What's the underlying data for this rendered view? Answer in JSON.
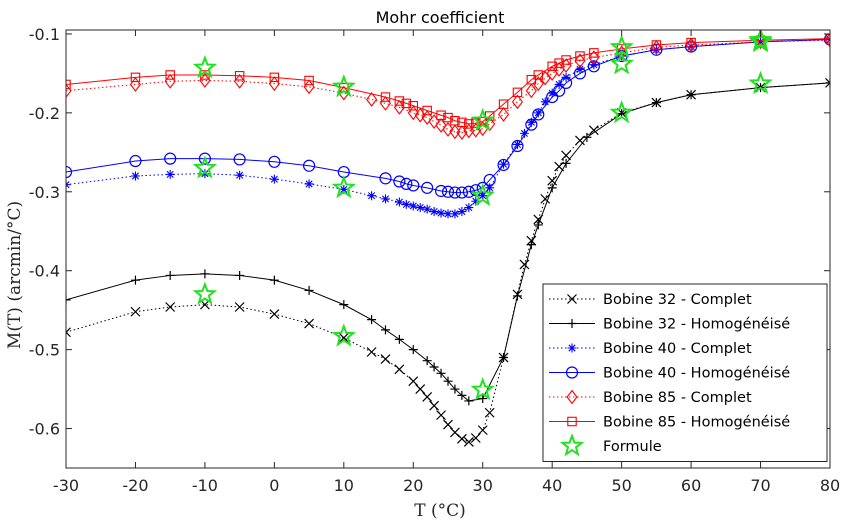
{
  "chart_data": {
    "type": "line",
    "title": "Mohr coefficient",
    "xlabel": "T (°C)",
    "ylabel": "M(T) (arcmin/°C)",
    "xlim": [
      -30,
      80
    ],
    "ylim": [
      -0.65,
      -0.095
    ],
    "xticks": [
      -30,
      -20,
      -10,
      0,
      10,
      20,
      30,
      40,
      50,
      60,
      70,
      80
    ],
    "yticks": [
      -0.6,
      -0.5,
      -0.4,
      -0.3,
      -0.2,
      -0.1
    ],
    "ytick_labels": [
      "-0.6",
      "-0.5",
      "-0.4",
      "-0.3",
      "-0.2",
      "-0.1"
    ],
    "grid": false,
    "legend_position": "bottom-right",
    "series": [
      {
        "name": "Bobine 32 - Complet",
        "color": "#000000",
        "line": "dotted",
        "marker": "x",
        "x": [
          -30,
          -20,
          -15,
          -10,
          -5,
          0,
          5,
          10,
          14,
          16,
          18,
          20,
          21,
          22,
          23,
          24,
          25,
          26,
          27,
          28,
          29,
          30,
          31,
          33,
          35,
          36,
          37,
          38,
          39,
          40,
          41,
          42,
          44,
          46,
          50,
          55,
          60,
          70,
          80
        ],
        "y": [
          -0.478,
          -0.452,
          -0.446,
          -0.443,
          -0.446,
          -0.455,
          -0.467,
          -0.485,
          -0.503,
          -0.512,
          -0.525,
          -0.54,
          -0.55,
          -0.56,
          -0.571,
          -0.583,
          -0.595,
          -0.605,
          -0.613,
          -0.617,
          -0.612,
          -0.602,
          -0.58,
          -0.51,
          -0.43,
          -0.392,
          -0.362,
          -0.335,
          -0.309,
          -0.286,
          -0.268,
          -0.254,
          -0.235,
          -0.222,
          -0.2,
          -0.187,
          -0.177,
          -0.168,
          -0.162
        ]
      },
      {
        "name": "Bobine 32 - Homogénéisé",
        "color": "#000000",
        "line": "solid",
        "marker": "+",
        "x": [
          -30,
          -20,
          -15,
          -10,
          -5,
          0,
          5,
          10,
          14,
          16,
          18,
          20,
          22,
          23,
          24,
          25,
          26,
          27,
          28,
          30,
          33,
          35,
          37,
          38,
          40,
          42,
          45,
          50,
          55,
          60,
          70,
          80
        ],
        "y": [
          -0.437,
          -0.412,
          -0.406,
          -0.404,
          -0.406,
          -0.412,
          -0.425,
          -0.443,
          -0.462,
          -0.475,
          -0.487,
          -0.5,
          -0.514,
          -0.522,
          -0.53,
          -0.54,
          -0.55,
          -0.558,
          -0.565,
          -0.562,
          -0.51,
          -0.432,
          -0.367,
          -0.342,
          -0.295,
          -0.264,
          -0.231,
          -0.201,
          -0.187,
          -0.177,
          -0.168,
          -0.162
        ]
      },
      {
        "name": "Bobine 40 - Complet",
        "color": "#0000ff",
        "line": "dotted",
        "marker": "*",
        "x": [
          -30,
          -20,
          -15,
          -10,
          -5,
          0,
          5,
          10,
          14,
          16,
          18,
          19,
          20,
          21,
          22,
          23,
          24,
          25,
          26,
          27,
          28,
          29,
          30,
          31,
          33,
          35,
          36,
          37,
          38,
          39,
          40,
          41,
          42,
          44,
          46,
          50,
          55,
          60,
          70,
          80
        ],
        "y": [
          -0.291,
          -0.28,
          -0.278,
          -0.277,
          -0.279,
          -0.284,
          -0.29,
          -0.297,
          -0.305,
          -0.309,
          -0.313,
          -0.316,
          -0.318,
          -0.32,
          -0.322,
          -0.325,
          -0.327,
          -0.328,
          -0.328,
          -0.325,
          -0.32,
          -0.312,
          -0.305,
          -0.295,
          -0.265,
          -0.24,
          -0.226,
          -0.212,
          -0.2,
          -0.186,
          -0.175,
          -0.164,
          -0.155,
          -0.145,
          -0.139,
          -0.128,
          -0.12,
          -0.116,
          -0.11,
          -0.107
        ]
      },
      {
        "name": "Bobine 40 - Homogénéisé",
        "color": "#0000ff",
        "line": "solid",
        "marker": "o",
        "x": [
          -30,
          -20,
          -15,
          -10,
          -5,
          0,
          5,
          10,
          16,
          18,
          19,
          20,
          22,
          24,
          25,
          26,
          27,
          28,
          29,
          30,
          31,
          33,
          35,
          37,
          38,
          40,
          41,
          42,
          44,
          46,
          50,
          55,
          60,
          70,
          80
        ],
        "y": [
          -0.275,
          -0.261,
          -0.258,
          -0.258,
          -0.259,
          -0.262,
          -0.267,
          -0.275,
          -0.283,
          -0.287,
          -0.29,
          -0.292,
          -0.295,
          -0.299,
          -0.3,
          -0.301,
          -0.301,
          -0.3,
          -0.298,
          -0.295,
          -0.285,
          -0.266,
          -0.242,
          -0.215,
          -0.202,
          -0.18,
          -0.172,
          -0.162,
          -0.15,
          -0.141,
          -0.128,
          -0.12,
          -0.116,
          -0.11,
          -0.107
        ]
      },
      {
        "name": "Bobine 85 - Complet",
        "color": "#ff0000",
        "line": "dotted",
        "marker": "diamond",
        "x": [
          -30,
          -20,
          -15,
          -10,
          -5,
          0,
          5,
          10,
          14,
          16,
          18,
          20,
          21,
          22,
          23,
          24,
          25,
          26,
          27,
          28,
          29,
          30,
          31,
          33,
          35,
          37,
          38,
          39,
          40,
          41,
          42,
          44,
          46,
          50,
          55,
          60,
          70,
          80
        ],
        "y": [
          -0.172,
          -0.164,
          -0.16,
          -0.159,
          -0.16,
          -0.163,
          -0.167,
          -0.175,
          -0.183,
          -0.188,
          -0.193,
          -0.2,
          -0.203,
          -0.206,
          -0.211,
          -0.216,
          -0.221,
          -0.224,
          -0.225,
          -0.223,
          -0.222,
          -0.22,
          -0.214,
          -0.202,
          -0.186,
          -0.172,
          -0.163,
          -0.156,
          -0.15,
          -0.145,
          -0.14,
          -0.134,
          -0.13,
          -0.124,
          -0.117,
          -0.114,
          -0.11,
          -0.108
        ]
      },
      {
        "name": "Bobine 85 - Homogénéisé",
        "color": "#ff0000",
        "line": "solid",
        "marker": "square",
        "x": [
          -30,
          -20,
          -15,
          -10,
          -5,
          0,
          5,
          10,
          16,
          18,
          19,
          20,
          22,
          24,
          25,
          26,
          27,
          28,
          29,
          30,
          31,
          33,
          35,
          37,
          38,
          40,
          41,
          42,
          44,
          46,
          50,
          55,
          60,
          70,
          80
        ],
        "y": [
          -0.164,
          -0.155,
          -0.152,
          -0.152,
          -0.153,
          -0.155,
          -0.159,
          -0.168,
          -0.18,
          -0.185,
          -0.188,
          -0.191,
          -0.197,
          -0.203,
          -0.206,
          -0.21,
          -0.212,
          -0.214,
          -0.213,
          -0.211,
          -0.204,
          -0.189,
          -0.174,
          -0.158,
          -0.152,
          -0.141,
          -0.137,
          -0.133,
          -0.128,
          -0.124,
          -0.119,
          -0.114,
          -0.111,
          -0.108,
          -0.106
        ]
      },
      {
        "name": "Formule",
        "color": "#22e022",
        "line": "none",
        "marker": "star",
        "x": [
          -10,
          -10,
          -10,
          10,
          10,
          10,
          30,
          30,
          30,
          50,
          50,
          50,
          70,
          70,
          70
        ],
        "y": [
          -0.143,
          -0.27,
          -0.43,
          -0.167,
          -0.295,
          -0.483,
          -0.21,
          -0.305,
          -0.551,
          -0.117,
          -0.138,
          -0.2,
          -0.108,
          -0.11,
          -0.163
        ]
      }
    ]
  }
}
